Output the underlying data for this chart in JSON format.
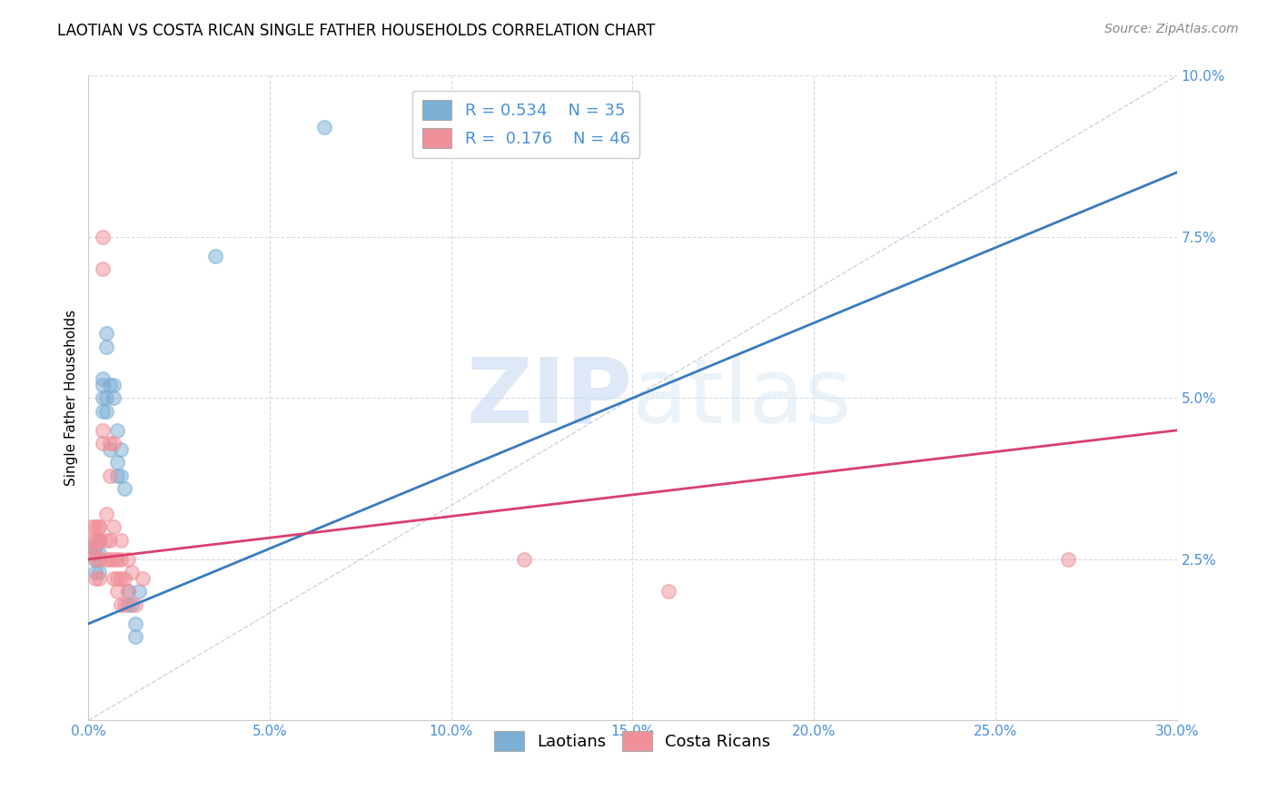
{
  "title": "LAOTIAN VS COSTA RICAN SINGLE FATHER HOUSEHOLDS CORRELATION CHART",
  "source": "Source: ZipAtlas.com",
  "ylabel": "Single Father Households",
  "xlim": [
    0.0,
    0.3
  ],
  "ylim": [
    0.0,
    0.1
  ],
  "xticks": [
    0.0,
    0.05,
    0.1,
    0.15,
    0.2,
    0.25,
    0.3
  ],
  "yticks": [
    0.0,
    0.025,
    0.05,
    0.075,
    0.1
  ],
  "xtick_labels": [
    "0.0%",
    "5.0%",
    "10.0%",
    "15.0%",
    "20.0%",
    "25.0%",
    "30.0%"
  ],
  "ytick_labels": [
    "",
    "2.5%",
    "5.0%",
    "7.5%",
    "10.0%"
  ],
  "laotian_color": "#7bafd4",
  "costa_rican_color": "#f0909a",
  "laotian_R": 0.534,
  "laotian_N": 35,
  "costa_rican_R": 0.176,
  "costa_rican_N": 46,
  "laotian_line_color": "#3a7bbf",
  "costa_rican_line_color": "#d94070",
  "ref_line_color": "#c0c8d8",
  "watermark_zip": "ZIP",
  "watermark_atlas": "atlas",
  "title_fontsize": 12,
  "laotian_scatter": [
    [
      0.001,
      0.027
    ],
    [
      0.002,
      0.027
    ],
    [
      0.002,
      0.025
    ],
    [
      0.002,
      0.023
    ],
    [
      0.003,
      0.028
    ],
    [
      0.003,
      0.026
    ],
    [
      0.003,
      0.023
    ],
    [
      0.003,
      0.025
    ],
    [
      0.003,
      0.028
    ],
    [
      0.004,
      0.053
    ],
    [
      0.004,
      0.05
    ],
    [
      0.004,
      0.048
    ],
    [
      0.004,
      0.052
    ],
    [
      0.005,
      0.06
    ],
    [
      0.005,
      0.058
    ],
    [
      0.005,
      0.048
    ],
    [
      0.005,
      0.05
    ],
    [
      0.006,
      0.052
    ],
    [
      0.006,
      0.042
    ],
    [
      0.007,
      0.052
    ],
    [
      0.007,
      0.05
    ],
    [
      0.008,
      0.045
    ],
    [
      0.008,
      0.04
    ],
    [
      0.008,
      0.038
    ],
    [
      0.009,
      0.042
    ],
    [
      0.009,
      0.038
    ],
    [
      0.01,
      0.036
    ],
    [
      0.011,
      0.02
    ],
    [
      0.011,
      0.018
    ],
    [
      0.012,
      0.018
    ],
    [
      0.013,
      0.015
    ],
    [
      0.013,
      0.013
    ],
    [
      0.014,
      0.02
    ],
    [
      0.035,
      0.072
    ],
    [
      0.065,
      0.092
    ]
  ],
  "costa_rican_scatter": [
    [
      0.001,
      0.03
    ],
    [
      0.001,
      0.028
    ],
    [
      0.001,
      0.026
    ],
    [
      0.002,
      0.03
    ],
    [
      0.002,
      0.028
    ],
    [
      0.002,
      0.026
    ],
    [
      0.002,
      0.025
    ],
    [
      0.002,
      0.022
    ],
    [
      0.003,
      0.03
    ],
    [
      0.003,
      0.028
    ],
    [
      0.003,
      0.03
    ],
    [
      0.003,
      0.028
    ],
    [
      0.003,
      0.025
    ],
    [
      0.003,
      0.022
    ],
    [
      0.004,
      0.075
    ],
    [
      0.004,
      0.07
    ],
    [
      0.004,
      0.045
    ],
    [
      0.004,
      0.043
    ],
    [
      0.005,
      0.032
    ],
    [
      0.005,
      0.028
    ],
    [
      0.005,
      0.025
    ],
    [
      0.006,
      0.043
    ],
    [
      0.006,
      0.038
    ],
    [
      0.006,
      0.028
    ],
    [
      0.006,
      0.025
    ],
    [
      0.007,
      0.043
    ],
    [
      0.007,
      0.03
    ],
    [
      0.007,
      0.025
    ],
    [
      0.007,
      0.022
    ],
    [
      0.008,
      0.025
    ],
    [
      0.008,
      0.022
    ],
    [
      0.008,
      0.02
    ],
    [
      0.009,
      0.028
    ],
    [
      0.009,
      0.025
    ],
    [
      0.009,
      0.022
    ],
    [
      0.009,
      0.018
    ],
    [
      0.01,
      0.022
    ],
    [
      0.01,
      0.018
    ],
    [
      0.011,
      0.025
    ],
    [
      0.011,
      0.02
    ],
    [
      0.012,
      0.023
    ],
    [
      0.013,
      0.018
    ],
    [
      0.015,
      0.022
    ],
    [
      0.12,
      0.025
    ],
    [
      0.16,
      0.02
    ],
    [
      0.27,
      0.025
    ]
  ]
}
